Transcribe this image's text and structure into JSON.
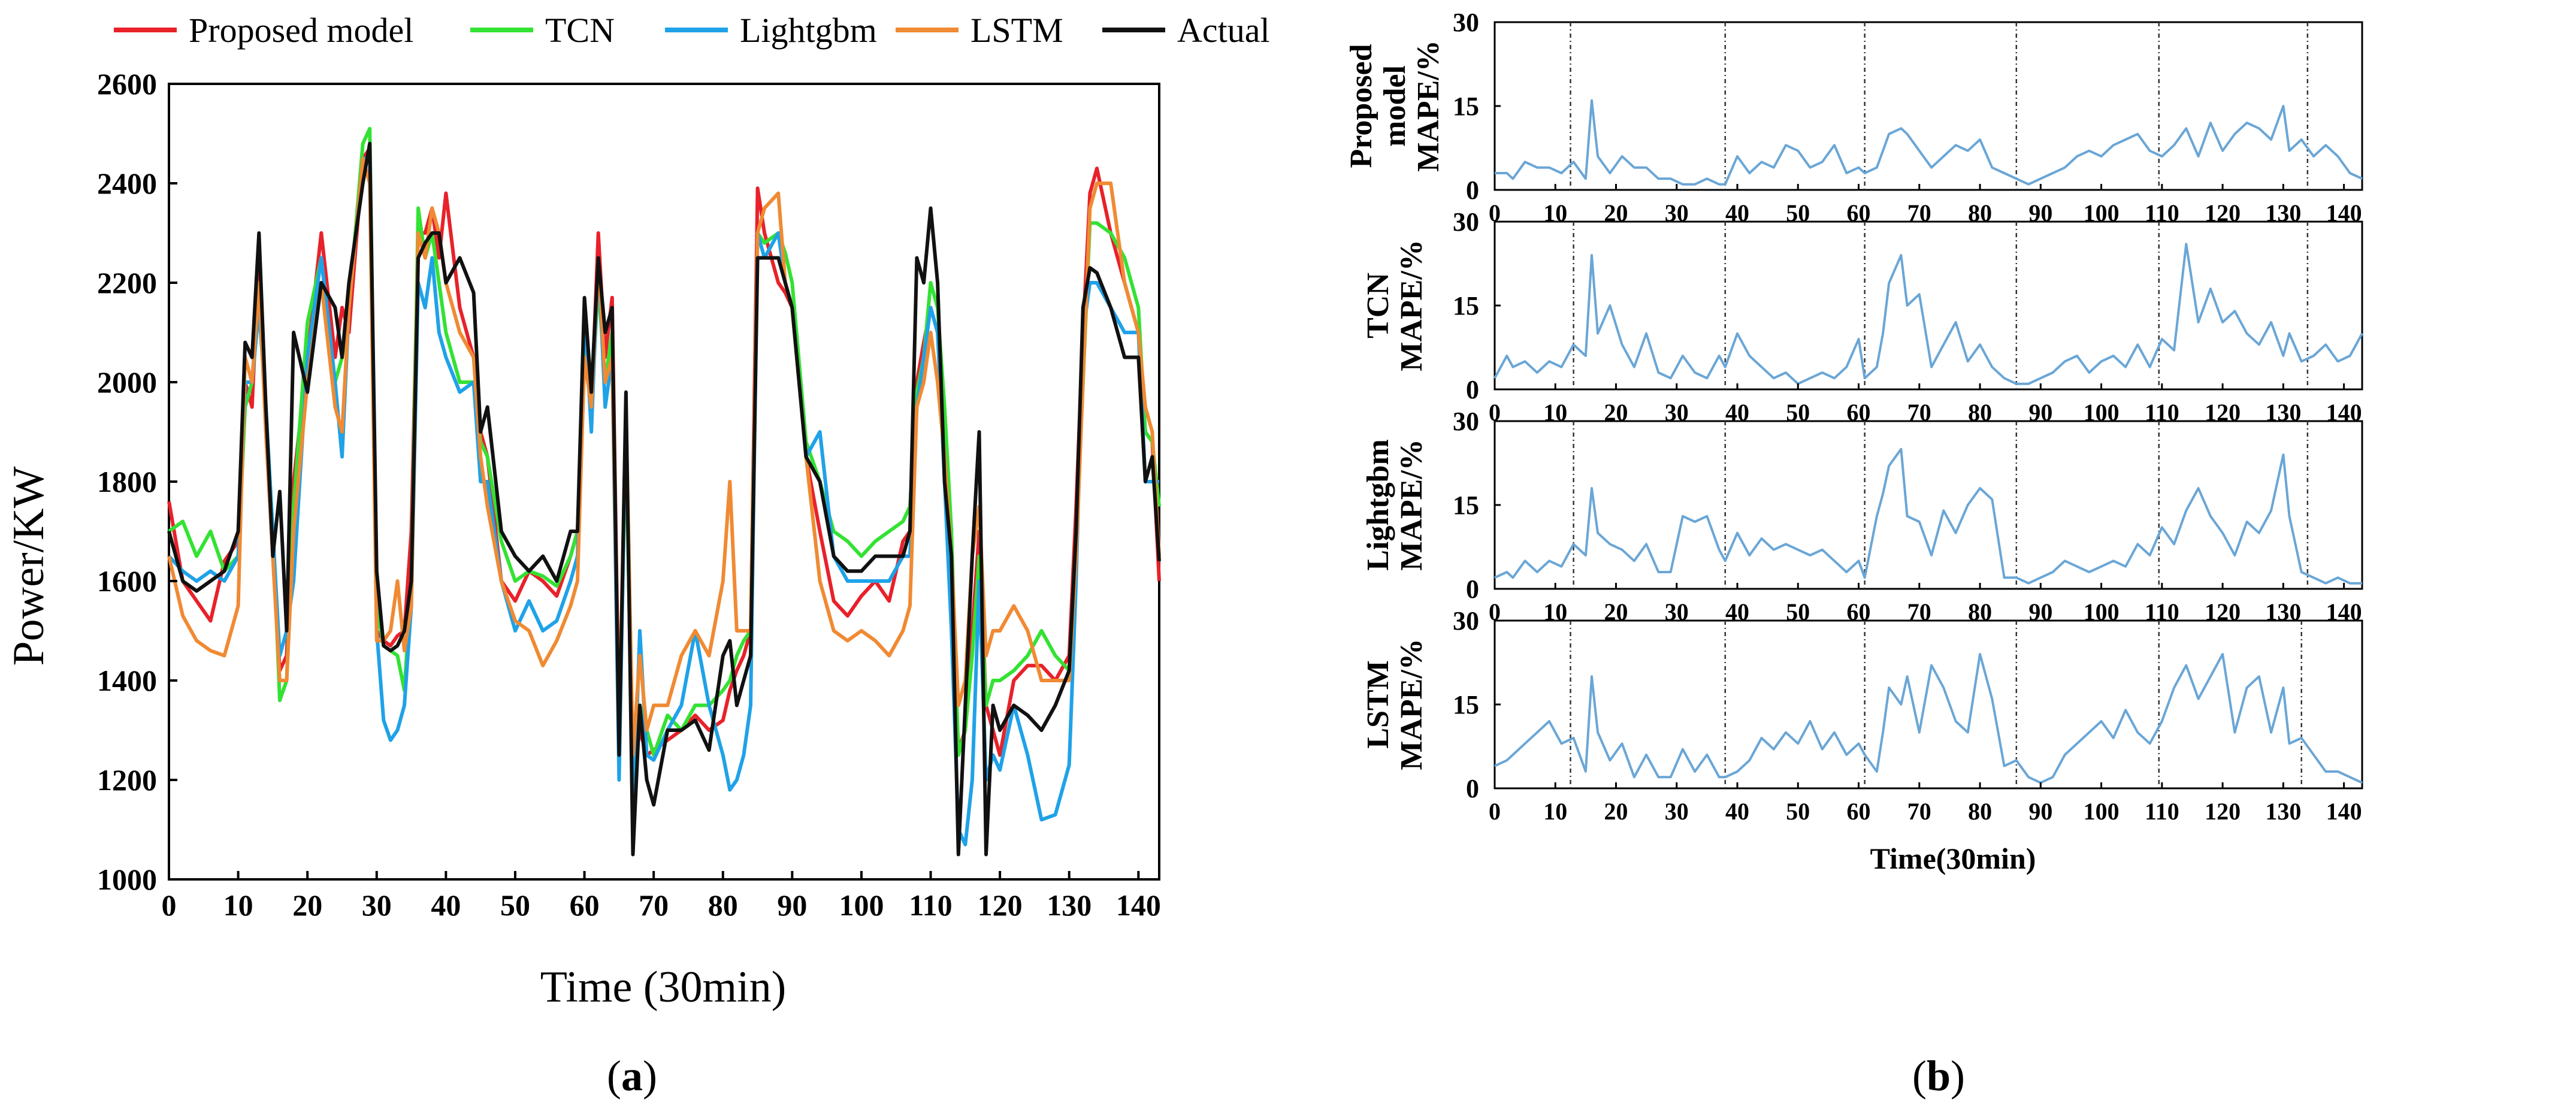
{
  "colors": {
    "proposed": "#e8212a",
    "tcn": "#33e233",
    "lightgbm": "#1fa2e8",
    "lstm": "#f08a33",
    "actual": "#111111",
    "mape_line": "#6aa6d6",
    "axis": "#000000"
  },
  "chart_data": [
    {
      "id": "a",
      "panel_label": "a",
      "type": "line",
      "title": "",
      "xlabel": "Time (30min)",
      "ylabel": "Power/KW",
      "xlim": [
        0,
        143
      ],
      "ylim": [
        1000,
        2600
      ],
      "xticks": [
        0,
        10,
        20,
        30,
        40,
        50,
        60,
        70,
        80,
        90,
        100,
        110,
        120,
        130,
        140
      ],
      "yticks": [
        1000,
        1200,
        1400,
        1600,
        1800,
        2000,
        2200,
        2400,
        2600
      ],
      "legend_position": "top",
      "keypoints_x": [
        0,
        2,
        4,
        6,
        8,
        10,
        11,
        12,
        13,
        14,
        15,
        16,
        17,
        18,
        20,
        22,
        24,
        25,
        26,
        28,
        29,
        30,
        31,
        32,
        33,
        34,
        35,
        36,
        37,
        38,
        39,
        40,
        42,
        44,
        45,
        46,
        48,
        50,
        52,
        54,
        56,
        58,
        59,
        60,
        61,
        62,
        63,
        64,
        65,
        66,
        67,
        68,
        69,
        70,
        72,
        74,
        76,
        78,
        80,
        81,
        82,
        83,
        84,
        85,
        86,
        88,
        89,
        90,
        92,
        94,
        96,
        98,
        100,
        102,
        104,
        106,
        107,
        108,
        109,
        110,
        111,
        112,
        113,
        114,
        115,
        116,
        117,
        118,
        119,
        120,
        122,
        124,
        126,
        128,
        130,
        131,
        132,
        133,
        134,
        136,
        138,
        140,
        141,
        142,
        143
      ],
      "series": [
        {
          "name": "Proposed model",
          "color_key": "proposed",
          "values": [
            1760,
            1600,
            1560,
            1520,
            1640,
            1680,
            2000,
            1950,
            2250,
            1900,
            1650,
            1420,
            1450,
            1800,
            2050,
            2300,
            2050,
            2150,
            2100,
            2450,
            2470,
            1500,
            1480,
            1470,
            1490,
            1500,
            1700,
            2300,
            2300,
            2350,
            2250,
            2380,
            2150,
            2050,
            1900,
            1850,
            1600,
            1560,
            1620,
            1600,
            1570,
            1650,
            1700,
            2100,
            1950,
            2300,
            2050,
            2170,
            1300,
            1900,
            1200,
            1300,
            1250,
            1260,
            1280,
            1300,
            1330,
            1300,
            1320,
            1380,
            1420,
            1450,
            1500,
            2390,
            2300,
            2200,
            2180,
            2150,
            1850,
            1700,
            1560,
            1530,
            1570,
            1600,
            1560,
            1680,
            1700,
            2000,
            2080,
            2150,
            2100,
            1900,
            1600,
            1260,
            1300,
            1500,
            1700,
            1350,
            1300,
            1250,
            1400,
            1430,
            1430,
            1400,
            1450,
            1750,
            2100,
            2380,
            2430,
            2300,
            2200,
            2100,
            1900,
            1880,
            1600
          ]
        },
        {
          "name": "TCN",
          "color_key": "tcn",
          "values": [
            1700,
            1720,
            1650,
            1700,
            1620,
            1650,
            1950,
            2000,
            2150,
            1950,
            1700,
            1360,
            1400,
            1750,
            2120,
            2250,
            2000,
            2050,
            2150,
            2480,
            2510,
            1550,
            1470,
            1460,
            1450,
            1380,
            1600,
            2350,
            2250,
            2300,
            2200,
            2100,
            2000,
            2000,
            1880,
            1850,
            1680,
            1600,
            1620,
            1610,
            1590,
            1650,
            1700,
            2100,
            1950,
            2200,
            2000,
            2100,
            1250,
            1900,
            1150,
            1350,
            1300,
            1250,
            1330,
            1300,
            1350,
            1350,
            1380,
            1400,
            1450,
            1480,
            1500,
            2300,
            2280,
            2300,
            2260,
            2200,
            1880,
            1800,
            1700,
            1680,
            1650,
            1680,
            1700,
            1720,
            1750,
            1980,
            2050,
            2200,
            2150,
            1950,
            1700,
            1250,
            1300,
            1450,
            1650,
            1350,
            1400,
            1400,
            1420,
            1450,
            1500,
            1450,
            1420,
            1700,
            2000,
            2320,
            2320,
            2300,
            2250,
            2150,
            1900,
            1880,
            1750
          ]
        },
        {
          "name": "Lightgbm",
          "color_key": "lightgbm",
          "values": [
            1650,
            1620,
            1600,
            1620,
            1600,
            1650,
            2000,
            2000,
            2150,
            1950,
            1700,
            1450,
            1500,
            1600,
            2050,
            2250,
            2000,
            1850,
            2150,
            2450,
            2450,
            1500,
            1320,
            1280,
            1300,
            1350,
            1550,
            2200,
            2150,
            2250,
            2100,
            2050,
            1980,
            2000,
            1800,
            1800,
            1600,
            1500,
            1560,
            1500,
            1520,
            1600,
            1650,
            2150,
            1900,
            2250,
            1950,
            2050,
            1200,
            1950,
            1100,
            1500,
            1250,
            1240,
            1300,
            1350,
            1500,
            1350,
            1250,
            1180,
            1200,
            1250,
            1350,
            2300,
            2250,
            2300,
            2200,
            2150,
            1850,
            1900,
            1650,
            1600,
            1600,
            1600,
            1600,
            1650,
            1650,
            1950,
            2050,
            2150,
            2100,
            1800,
            1500,
            1100,
            1070,
            1200,
            1600,
            1200,
            1250,
            1220,
            1350,
            1250,
            1120,
            1130,
            1230,
            1600,
            2100,
            2200,
            2200,
            2150,
            2100,
            2100,
            1800,
            1800,
            1800
          ]
        },
        {
          "name": "LSTM",
          "color_key": "lstm",
          "values": [
            1650,
            1530,
            1480,
            1460,
            1450,
            1550,
            2050,
            2000,
            2200,
            1900,
            1650,
            1400,
            1400,
            1700,
            2000,
            2200,
            1950,
            1900,
            2150,
            2450,
            2400,
            1480,
            1480,
            1500,
            1600,
            1460,
            1550,
            2300,
            2250,
            2350,
            2300,
            2200,
            2100,
            2050,
            1850,
            1750,
            1600,
            1520,
            1500,
            1430,
            1480,
            1550,
            1600,
            2050,
            1950,
            2250,
            2000,
            2050,
            1300,
            1950,
            1250,
            1450,
            1300,
            1350,
            1350,
            1450,
            1500,
            1450,
            1600,
            1800,
            1500,
            1500,
            1500,
            2300,
            2350,
            2380,
            2200,
            2150,
            1850,
            1600,
            1500,
            1480,
            1500,
            1480,
            1450,
            1500,
            1550,
            1950,
            2000,
            2100,
            2000,
            1850,
            1650,
            1350,
            1400,
            1650,
            1750,
            1450,
            1500,
            1500,
            1550,
            1500,
            1400,
            1400,
            1400,
            1650,
            2000,
            2350,
            2400,
            2400,
            2200,
            2100,
            1950,
            1900,
            1650
          ]
        },
        {
          "name": "Actual",
          "color_key": "actual",
          "values": [
            1700,
            1600,
            1580,
            1600,
            1620,
            1700,
            2080,
            2050,
            2300,
            1950,
            1650,
            1780,
            1500,
            2100,
            1980,
            2200,
            2150,
            2050,
            2200,
            2400,
            2480,
            1620,
            1470,
            1460,
            1470,
            1500,
            1600,
            2250,
            2280,
            2300,
            2300,
            2200,
            2250,
            2180,
            1900,
            1950,
            1700,
            1650,
            1620,
            1650,
            1600,
            1700,
            1700,
            2170,
            1980,
            2250,
            2100,
            2150,
            1250,
            1980,
            1050,
            1350,
            1200,
            1150,
            1300,
            1300,
            1320,
            1260,
            1450,
            1480,
            1350,
            1400,
            1450,
            2250,
            2250,
            2250,
            2200,
            2150,
            1850,
            1800,
            1650,
            1620,
            1620,
            1650,
            1650,
            1650,
            1700,
            2250,
            2200,
            2350,
            2200,
            1800,
            1650,
            1050,
            1350,
            1650,
            1900,
            1050,
            1350,
            1300,
            1350,
            1330,
            1300,
            1350,
            1420,
            1700,
            2150,
            2230,
            2220,
            2150,
            2050,
            2050,
            1800,
            1850,
            1640
          ]
        }
      ]
    },
    {
      "id": "b",
      "panel_label": "b",
      "type": "line",
      "xlabel": "Time(30min)",
      "xlim": [
        0,
        143
      ],
      "ylim": [
        0,
        30
      ],
      "xticks": [
        0,
        10,
        20,
        30,
        40,
        50,
        60,
        70,
        80,
        90,
        100,
        110,
        120,
        130,
        140
      ],
      "yticks": [
        0,
        15,
        30
      ],
      "keypoints_x": [
        0,
        2,
        3,
        5,
        7,
        9,
        11,
        13,
        15,
        16,
        17,
        19,
        21,
        23,
        25,
        27,
        29,
        31,
        33,
        35,
        37,
        38,
        40,
        42,
        44,
        46,
        48,
        50,
        52,
        54,
        56,
        58,
        60,
        61,
        63,
        64,
        65,
        67,
        68,
        70,
        72,
        74,
        76,
        78,
        80,
        82,
        84,
        86,
        88,
        90,
        92,
        94,
        96,
        98,
        100,
        102,
        104,
        106,
        108,
        110,
        112,
        114,
        116,
        118,
        120,
        122,
        124,
        126,
        128,
        130,
        131,
        133,
        135,
        137,
        139,
        141,
        143
      ],
      "vlines": [
        12.5,
        38,
        61,
        86,
        109.5,
        134
      ],
      "subplots": [
        {
          "name": "Proposed model",
          "ylabel_lines": [
            "Proposed",
            "model",
            "MAPE/%"
          ],
          "vlines": [
            12.5,
            38,
            61,
            86,
            109.5,
            134
          ],
          "values": [
            3,
            3,
            2,
            5,
            4,
            4,
            3,
            5,
            2,
            16,
            6,
            3,
            6,
            4,
            4,
            2,
            2,
            1,
            1,
            2,
            1,
            1,
            6,
            3,
            5,
            4,
            8,
            7,
            4,
            5,
            8,
            3,
            4,
            3,
            4,
            7,
            10,
            11,
            10,
            7,
            4,
            6,
            8,
            7,
            9,
            4,
            3,
            2,
            1,
            2,
            3,
            4,
            6,
            7,
            6,
            8,
            9,
            10,
            7,
            6,
            8,
            11,
            6,
            12,
            7,
            10,
            12,
            11,
            9,
            15,
            7,
            9,
            6,
            8,
            6,
            3,
            2
          ]
        },
        {
          "name": "TCN",
          "ylabel_lines": [
            "TCN",
            "MAPE/%"
          ],
          "vlines": [
            13,
            38,
            61,
            86,
            109.5,
            134
          ],
          "values": [
            2,
            6,
            4,
            5,
            3,
            5,
            4,
            8,
            6,
            24,
            10,
            15,
            8,
            4,
            10,
            3,
            2,
            6,
            3,
            2,
            6,
            4,
            10,
            6,
            4,
            2,
            3,
            1,
            2,
            3,
            2,
            4,
            9,
            2,
            4,
            10,
            19,
            24,
            15,
            17,
            4,
            8,
            12,
            5,
            8,
            4,
            2,
            1,
            1,
            2,
            3,
            5,
            6,
            3,
            5,
            6,
            4,
            8,
            4,
            9,
            7,
            26,
            12,
            18,
            12,
            14,
            10,
            8,
            12,
            6,
            10,
            5,
            6,
            8,
            5,
            6,
            10
          ]
        },
        {
          "name": "Lightgbm",
          "ylabel_lines": [
            "Lightgbm",
            "MAPE/%"
          ],
          "vlines": [
            13,
            38,
            61,
            86,
            109.5,
            134
          ],
          "values": [
            2,
            3,
            2,
            5,
            3,
            5,
            4,
            8,
            6,
            18,
            10,
            8,
            7,
            5,
            8,
            3,
            3,
            13,
            12,
            13,
            7,
            5,
            10,
            6,
            9,
            7,
            8,
            7,
            6,
            7,
            5,
            3,
            5,
            2,
            13,
            17,
            22,
            25,
            13,
            12,
            6,
            14,
            10,
            15,
            18,
            16,
            2,
            2,
            1,
            2,
            3,
            5,
            4,
            3,
            4,
            5,
            4,
            8,
            6,
            11,
            8,
            14,
            18,
            13,
            10,
            6,
            12,
            10,
            14,
            24,
            13,
            3,
            2,
            1,
            2,
            1,
            1
          ]
        },
        {
          "name": "LSTM",
          "ylabel_lines": [
            "LSTM",
            "MAPE/%"
          ],
          "vlines": [
            12.5,
            38,
            61,
            86,
            109.5,
            133
          ],
          "values": [
            4,
            5,
            6,
            8,
            10,
            12,
            8,
            9,
            3,
            20,
            10,
            5,
            8,
            2,
            6,
            2,
            2,
            7,
            3,
            6,
            2,
            2,
            3,
            5,
            9,
            7,
            10,
            8,
            12,
            7,
            10,
            6,
            8,
            6,
            3,
            10,
            18,
            15,
            20,
            10,
            22,
            18,
            12,
            10,
            24,
            16,
            4,
            5,
            2,
            1,
            2,
            6,
            8,
            10,
            12,
            9,
            14,
            10,
            8,
            12,
            18,
            22,
            16,
            20,
            24,
            10,
            18,
            20,
            10,
            18,
            8,
            9,
            6,
            3,
            3,
            2,
            1
          ]
        }
      ]
    }
  ]
}
